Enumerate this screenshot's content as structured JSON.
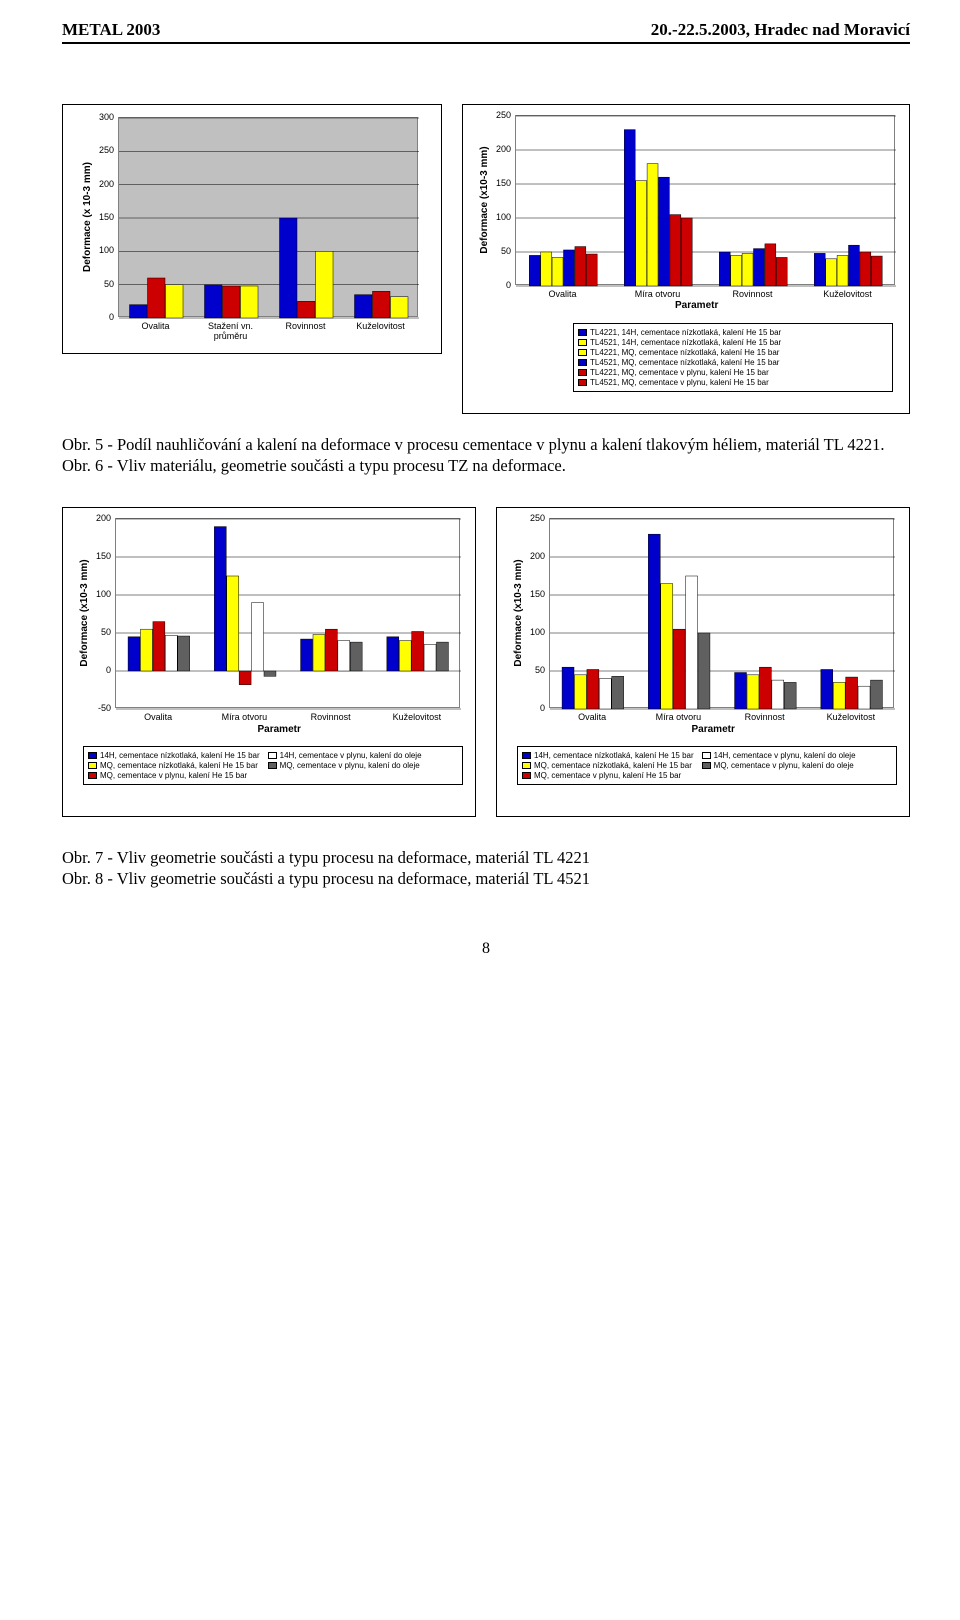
{
  "header": {
    "left": "METAL 2003",
    "right": "20.-22.5.2003, Hradec nad Moravicí"
  },
  "chart1": {
    "type": "bar",
    "ylabel": "Deformace (x 10-3 mm)",
    "categories": [
      "Ovalita",
      "Stažení vn. průměru",
      "Rovinnost",
      "Kuželovitost"
    ],
    "ylim": [
      0,
      300
    ],
    "ytick_step": 50,
    "series_colors": [
      "#0000cc",
      "#cc0000",
      "#ffff00"
    ],
    "values": [
      [
        20,
        60,
        50
      ],
      [
        50,
        48,
        48
      ],
      [
        150,
        25,
        100
      ],
      [
        35,
        40,
        32
      ]
    ],
    "bg": "#c0c0c0"
  },
  "chart2": {
    "type": "bar",
    "ylabel": "Deformace (x10-3 mm)",
    "xlabel": "Parametr",
    "categories": [
      "Ovalita",
      "Míra otvoru",
      "Rovinnost",
      "Kuželovitost"
    ],
    "ylim": [
      0,
      250
    ],
    "ytick_step": 50,
    "series_colors": [
      "#0000cc",
      "#ffff00",
      "#ffff00",
      "#0000cc",
      "#cc0000",
      "#cc0000"
    ],
    "values": [
      [
        45,
        50,
        42,
        53,
        58,
        47
      ],
      [
        230,
        155,
        180,
        160,
        105,
        100
      ],
      [
        50,
        45,
        48,
        55,
        62,
        42
      ],
      [
        48,
        40,
        45,
        60,
        50,
        44
      ]
    ],
    "legend": [
      {
        "label": "TL4221, 14H, cementace nízkotlaká, kalení He 15 bar",
        "color": "#0000cc"
      },
      {
        "label": "TL4521, 14H, cementace nízkotlaká, kalení He 15 bar",
        "color": "#ffff00"
      },
      {
        "label": "TL4221, MQ, cementace nízkotlaká, kalení He 15 bar",
        "color": "#ffff00"
      },
      {
        "label": "TL4521, MQ, cementace nízkotlaká, kalení He 15 bar",
        "color": "#0000cc"
      },
      {
        "label": "TL4221, MQ, cementace v plynu, kalení He 15 bar",
        "color": "#cc0000"
      },
      {
        "label": "TL4521, MQ, cementace v plynu, kalení He 15 bar",
        "color": "#cc0000"
      }
    ],
    "bg": "#ffffff"
  },
  "caption1": "Obr. 5 - Podíl nauhličování a kalení na deformace v procesu cementace v plynu a kalení tlakovým héliem, materiál TL 4221.",
  "caption2": "Obr. 6 - Vliv materiálu, geometrie součásti a typu procesu TZ na deformace.",
  "chart3": {
    "type": "bar",
    "ylabel": "Deformace (x10-3 mm)",
    "xlabel": "Parametr",
    "categories": [
      "Ovalita",
      "Míra otvoru",
      "Rovinnost",
      "Kuželovitost"
    ],
    "ylim": [
      -50,
      200
    ],
    "ytick_step": 50,
    "series_colors": [
      "#0000cc",
      "#ffff00",
      "#cc0000",
      "#ffffff",
      "#606060"
    ],
    "values": [
      [
        45,
        55,
        65,
        47,
        46
      ],
      [
        190,
        125,
        -18,
        90,
        -7
      ],
      [
        42,
        48,
        55,
        40,
        38
      ],
      [
        45,
        40,
        52,
        35,
        38
      ]
    ],
    "legend": [
      {
        "label": "14H, cementace nízkotlaká, kalení He 15 bar",
        "color": "#0000cc"
      },
      {
        "label": "MQ, cementace nízkotlaká, kalení He 15 bar",
        "color": "#ffff00"
      },
      {
        "label": "MQ, cementace v plynu, kalení He 15 bar",
        "color": "#cc0000"
      },
      {
        "label": "14H, cementace v plynu, kalení do oleje",
        "color": "#ffffff"
      },
      {
        "label": "MQ, cementace v plynu, kalení do oleje",
        "color": "#606060"
      }
    ],
    "bg": "#ffffff"
  },
  "chart4": {
    "type": "bar",
    "ylabel": "Deformace (x10-3 mm)",
    "xlabel": "Parametr",
    "categories": [
      "Ovalita",
      "Míra otvoru",
      "Rovinnost",
      "Kuželovitost"
    ],
    "ylim": [
      0,
      250
    ],
    "ytick_step": 50,
    "series_colors": [
      "#0000cc",
      "#ffff00",
      "#cc0000",
      "#ffffff",
      "#606060"
    ],
    "values": [
      [
        55,
        45,
        52,
        40,
        43
      ],
      [
        230,
        165,
        105,
        175,
        100
      ],
      [
        48,
        45,
        55,
        38,
        35
      ],
      [
        52,
        35,
        42,
        30,
        38
      ]
    ],
    "legend": [
      {
        "label": "14H, cementace nízkotlaká, kalení He 15 bar",
        "color": "#0000cc"
      },
      {
        "label": "MQ, cementace nízkotlaká, kalení He 15 bar",
        "color": "#ffff00"
      },
      {
        "label": "MQ, cementace v plynu, kalení He 15 bar",
        "color": "#cc0000"
      },
      {
        "label": "14H, cementace v plynu, kalení do oleje",
        "color": "#ffffff"
      },
      {
        "label": "MQ, cementace v plynu, kalení do oleje",
        "color": "#606060"
      }
    ],
    "bg": "#ffffff"
  },
  "caption3": "Obr. 7 - Vliv geometrie součásti a typu procesu na deformace, materiál TL 4221",
  "caption4": "Obr. 8 - Vliv geometrie součásti a typu procesu na deformace, materiál TL 4521",
  "page_number": "8"
}
